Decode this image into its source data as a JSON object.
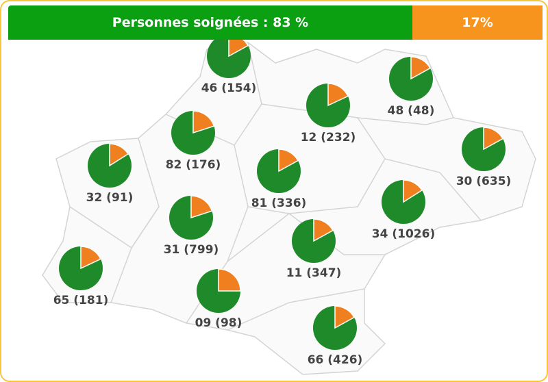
{
  "header": {
    "treated": "Personnes soignées : 83 %",
    "untreated": "17%"
  },
  "regions": [
    {
      "label": "46 (154)",
      "untreated_share": 17
    },
    {
      "label": "48 (48)",
      "untreated_share": 17
    },
    {
      "label": "12 (232)",
      "untreated_share": 18
    },
    {
      "label": "82 (176)",
      "untreated_share": 20
    },
    {
      "label": "30 (635)",
      "untreated_share": 17
    },
    {
      "label": "32 (91)",
      "untreated_share": 16
    },
    {
      "label": "81 (336)",
      "untreated_share": 17
    },
    {
      "label": "34 (1026)",
      "untreated_share": 16
    },
    {
      "label": "31 (799)",
      "untreated_share": 20
    },
    {
      "label": "11 (347)",
      "untreated_share": 17
    },
    {
      "label": "65 (181)",
      "untreated_share": 18
    },
    {
      "label": "09 (98)",
      "untreated_share": 25
    },
    {
      "label": "66 (426)",
      "untreated_share": 17
    }
  ]
}
